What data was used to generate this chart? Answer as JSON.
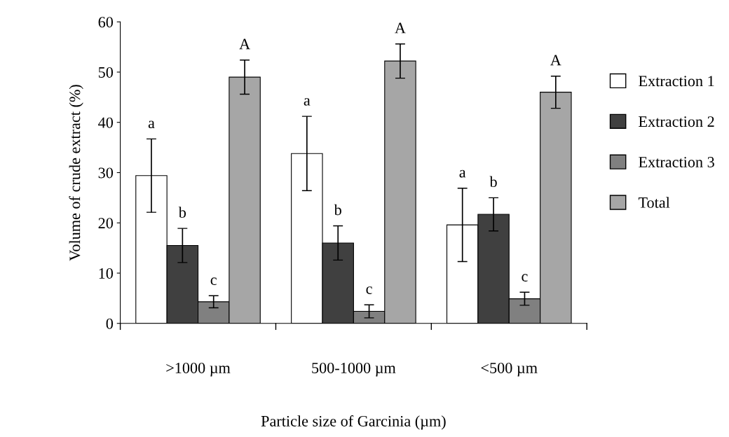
{
  "chart_data": {
    "type": "bar",
    "xlabel": "Particle size of Garcinia (µm)",
    "ylabel": "Volume of crude extract (%)",
    "categories": [
      ">1000 µm",
      "500-1000 µm",
      "<500 µm"
    ],
    "series": [
      {
        "name": "Extraction 1",
        "color": "#ffffff",
        "values": [
          29.4,
          33.8,
          19.6
        ],
        "errors": [
          7.3,
          7.4,
          7.3
        ],
        "value_labels": [
          "a",
          "a",
          "a"
        ]
      },
      {
        "name": "Extraction 2",
        "color": "#404040",
        "values": [
          15.5,
          16.0,
          21.7
        ],
        "errors": [
          3.4,
          3.4,
          3.3
        ],
        "value_labels": [
          "b",
          "b",
          "b"
        ]
      },
      {
        "name": "Extraction 3",
        "color": "#808080",
        "values": [
          4.3,
          2.4,
          4.9
        ],
        "errors": [
          1.2,
          1.3,
          1.3
        ],
        "value_labels": [
          "c",
          "c",
          "c"
        ]
      },
      {
        "name": "Total",
        "color": "#a6a6a6",
        "values": [
          49.0,
          52.2,
          46.0
        ],
        "errors": [
          3.4,
          3.4,
          3.2
        ],
        "value_labels": [
          "A",
          "A",
          "A"
        ]
      }
    ],
    "ylim": [
      0,
      60
    ],
    "yticks": [
      0,
      10,
      20,
      30,
      40,
      50,
      60
    ],
    "grid": false,
    "legend": "right"
  }
}
